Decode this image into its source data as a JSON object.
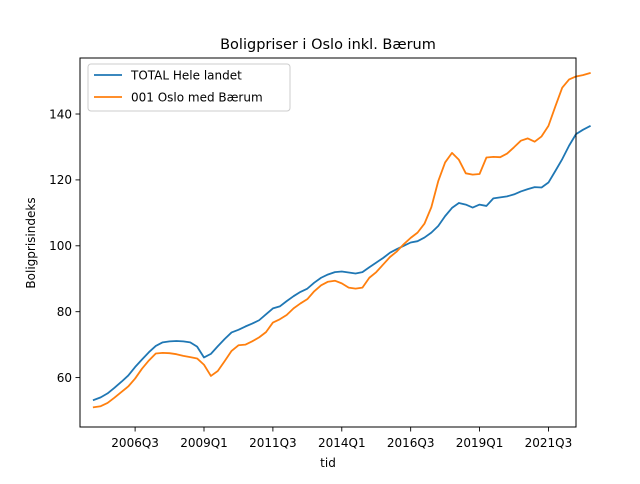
{
  "chart_data": {
    "type": "line",
    "title": "Boligpriser i Oslo inkl. Bærum",
    "xlabel": "tid",
    "ylabel": "Boligprisindeks",
    "x_start": "2005Q1",
    "x_end": "2022Q1",
    "xlim": [
      "2004Q3",
      "2022Q3"
    ],
    "ylim": [
      45,
      157
    ],
    "x_ticks": [
      "2006Q3",
      "2009Q1",
      "2011Q3",
      "2014Q1",
      "2016Q3",
      "2019Q1",
      "2021Q3"
    ],
    "y_ticks": [
      60,
      80,
      100,
      120,
      140
    ],
    "grid": false,
    "legend_position": "top-left",
    "series": [
      {
        "name": "TOTAL Hele landet",
        "color": "#1f77b4",
        "values": [
          53.2,
          54.0,
          55.2,
          56.9,
          58.7,
          60.6,
          63.2,
          65.5,
          67.7,
          69.6,
          70.7,
          71.0,
          71.1,
          71.0,
          70.7,
          69.4,
          66.1,
          67.2,
          69.5,
          71.7,
          73.7,
          74.5,
          75.5,
          76.4,
          77.4,
          79.2,
          81.0,
          81.6,
          83.2,
          84.7,
          86.0,
          87.0,
          88.8,
          90.3,
          91.3,
          92.0,
          92.2,
          91.9,
          91.6,
          92.0,
          93.5,
          94.9,
          96.3,
          97.9,
          99.0,
          100.0,
          101.0,
          101.4,
          102.5,
          104.0,
          106.0,
          109.0,
          111.5,
          113.0,
          112.5,
          111.6,
          112.5,
          112.1,
          114.4,
          114.7,
          115.0,
          115.6,
          116.5,
          117.2,
          117.8,
          117.7,
          119.2,
          122.7,
          126.3,
          130.4,
          133.9,
          135.2,
          136.3
        ]
      },
      {
        "name": "001 Oslo med Bærum",
        "color": "#ff7f0e",
        "values": [
          51.0,
          51.3,
          52.3,
          53.9,
          55.6,
          57.3,
          59.7,
          62.7,
          65.2,
          67.3,
          67.5,
          67.4,
          67.1,
          66.6,
          66.2,
          65.8,
          63.9,
          60.5,
          62.0,
          65.0,
          68.1,
          69.8,
          70.0,
          71.0,
          72.2,
          73.8,
          76.7,
          77.7,
          79.0,
          81.0,
          82.5,
          83.8,
          86.2,
          88.0,
          89.1,
          89.4,
          88.6,
          87.3,
          87.0,
          87.3,
          90.3,
          92.0,
          94.3,
          96.6,
          98.3,
          100.5,
          102.4,
          104.0,
          106.7,
          111.7,
          119.6,
          125.3,
          128.2,
          126.1,
          122.0,
          121.6,
          121.8,
          126.8,
          127.0,
          126.9,
          128.0,
          129.9,
          131.9,
          132.6,
          131.6,
          133.2,
          136.4,
          142.3,
          148.0,
          150.5,
          151.4,
          151.8,
          152.4
        ]
      }
    ]
  }
}
